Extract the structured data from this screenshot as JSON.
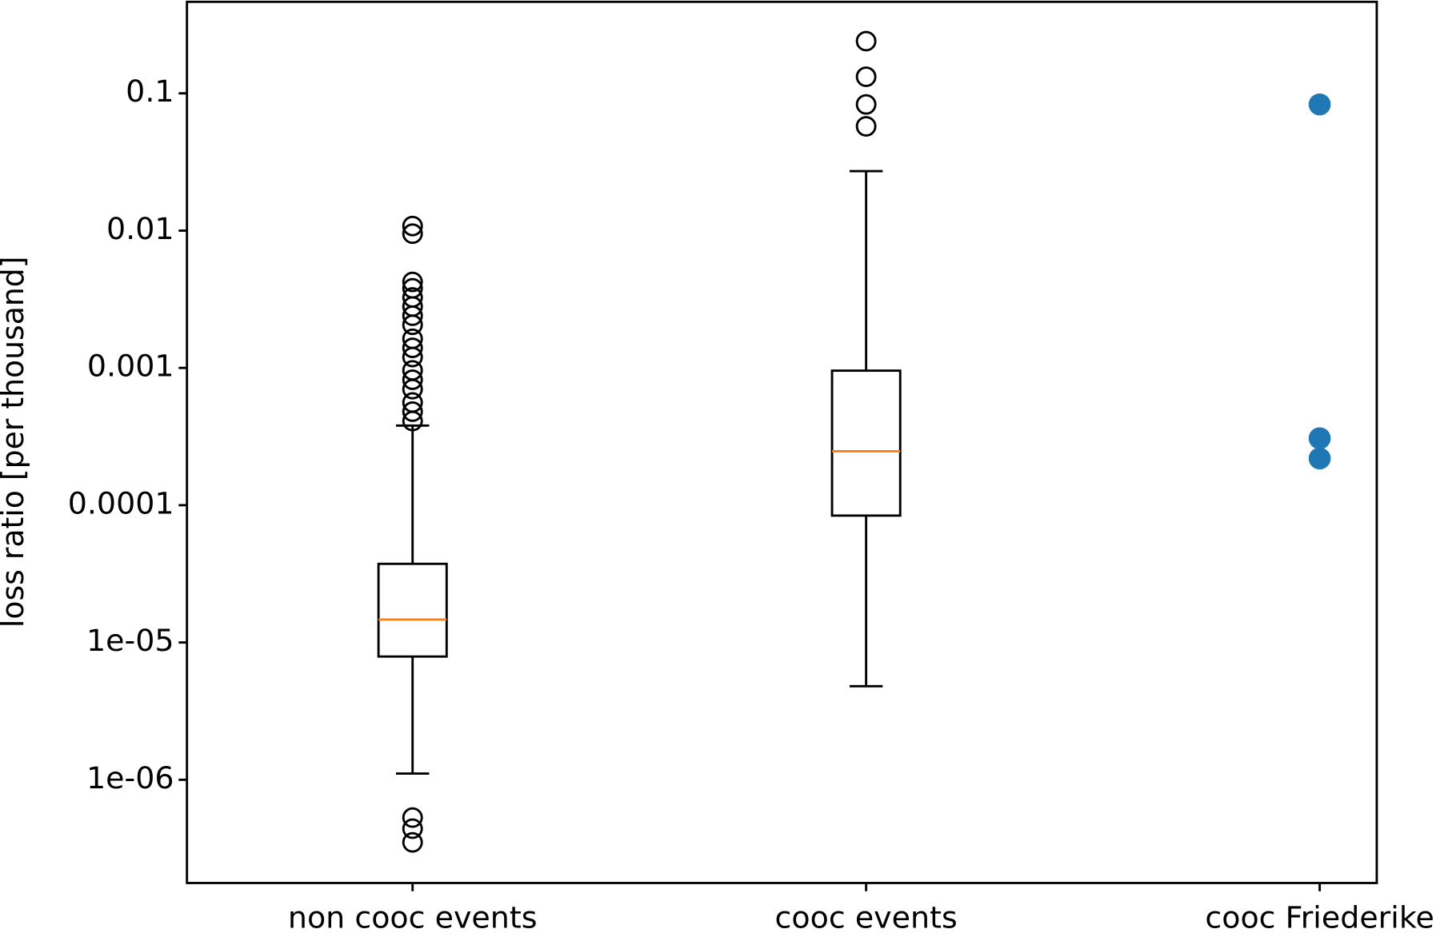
{
  "chart_data": {
    "type": "box",
    "y_label": "loss ratio [per thousand]",
    "y_log": true,
    "ylim": [
      1.77e-07,
      0.464
    ],
    "yticks": [
      0.1,
      0.01,
      0.001,
      0.0001,
      {
        "value": 1e-05,
        "label": "1e-05"
      },
      {
        "value": 1e-06,
        "label": "1e-06"
      }
    ],
    "categories": [
      "non cooc events",
      "cooc events",
      "cooc Friederike"
    ],
    "boxes": [
      {
        "whislo": 1.11e-06,
        "q1": 7.9e-06,
        "med": 1.47e-05,
        "q3": 3.74e-05,
        "whishi": 0.00038,
        "fliers": [
          5.3e-07,
          4.4e-07,
          3.5e-07,
          0.0108,
          0.0095,
          0.00423,
          0.0038,
          0.00326,
          0.0028,
          0.0024,
          0.00206,
          0.00163,
          0.0014,
          0.0012,
          0.00096,
          0.00082,
          0.0007,
          0.00056,
          0.00048,
          0.00041
        ]
      },
      {
        "whislo": 4.8e-06,
        "q1": 8.4e-05,
        "med": 0.000247,
        "q3": 0.000955,
        "whishi": 0.0271,
        "fliers": [
          0.24,
          0.132,
          0.083,
          0.0575
        ]
      }
    ],
    "median_color": "#ff7f0e",
    "points": {
      "values": [
        0.083,
        0.000307,
        0.000219
      ],
      "color": "#1f77b4"
    }
  }
}
